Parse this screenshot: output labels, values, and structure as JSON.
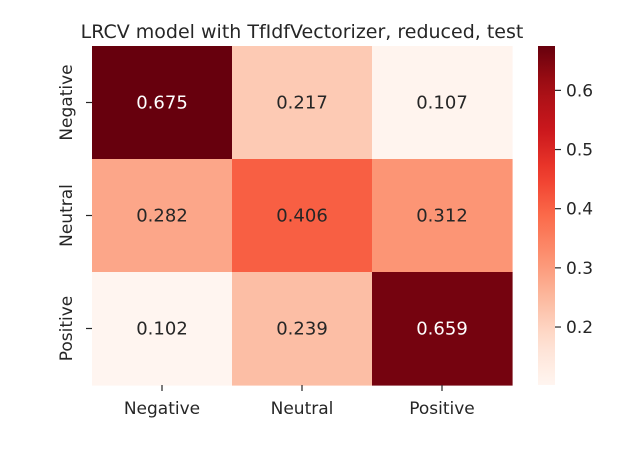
{
  "chart_data": {
    "type": "heatmap",
    "title": "LRCV model with TfIdfVectorizer, reduced, test",
    "xlabel": "",
    "ylabel": "",
    "x_categories": [
      "Negative",
      "Neutral",
      "Positive"
    ],
    "y_categories": [
      "Negative",
      "Neutral",
      "Positive"
    ],
    "values": [
      [
        0.675,
        0.217,
        0.107
      ],
      [
        0.282,
        0.406,
        0.312
      ],
      [
        0.102,
        0.239,
        0.659
      ]
    ],
    "value_format": "3 decimals",
    "colormap": "Reds",
    "colors": {
      "low": "#fff5f0",
      "high": "#67000d",
      "annotation_light": "#ffffff",
      "annotation_dark": "#262626"
    },
    "colorbar": {
      "vmin": 0.102,
      "vmax": 0.675,
      "ticks": [
        0.2,
        0.3,
        0.4,
        0.5,
        0.6
      ],
      "tick_labels": [
        "0.2",
        "0.3",
        "0.4",
        "0.5",
        "0.6"
      ]
    },
    "grid": false
  }
}
